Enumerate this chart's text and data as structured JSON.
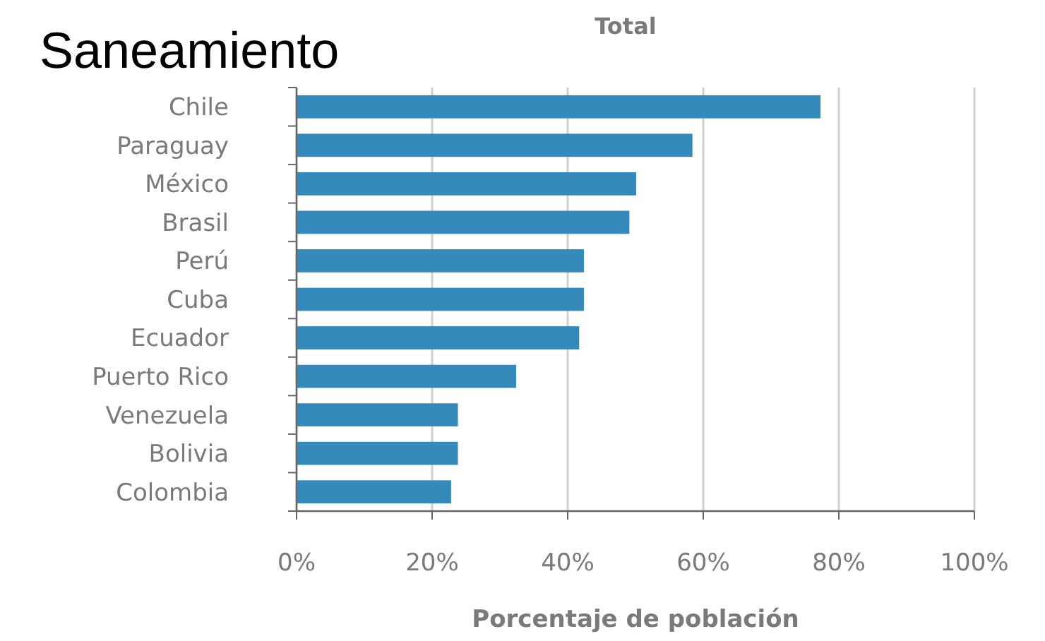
{
  "chart_data": {
    "type": "bar",
    "orientation": "horizontal",
    "title": "Saneamiento",
    "subtitle": "Total",
    "xlabel": "Porcentaje de población",
    "categories": [
      "Chile",
      "Paraguay",
      "México",
      "Brasil",
      "Perú",
      "Cuba",
      "Ecuador",
      "Puerto Rico",
      "Venezuela",
      "Bolivia",
      "Colombia"
    ],
    "values": [
      77.3,
      58.4,
      50.1,
      49.1,
      42.4,
      42.4,
      41.7,
      32.4,
      23.8,
      23.8,
      22.8
    ],
    "color": "#348abb",
    "xlim": [
      0,
      100
    ],
    "xticks": [
      {
        "value": 0,
        "label": "0%"
      },
      {
        "value": 20,
        "label": "20%"
      },
      {
        "value": 40,
        "label": "40%"
      },
      {
        "value": 60,
        "label": "60%"
      },
      {
        "value": 80,
        "label": "80%"
      },
      {
        "value": 100,
        "label": "100%"
      }
    ],
    "grid": "x"
  }
}
